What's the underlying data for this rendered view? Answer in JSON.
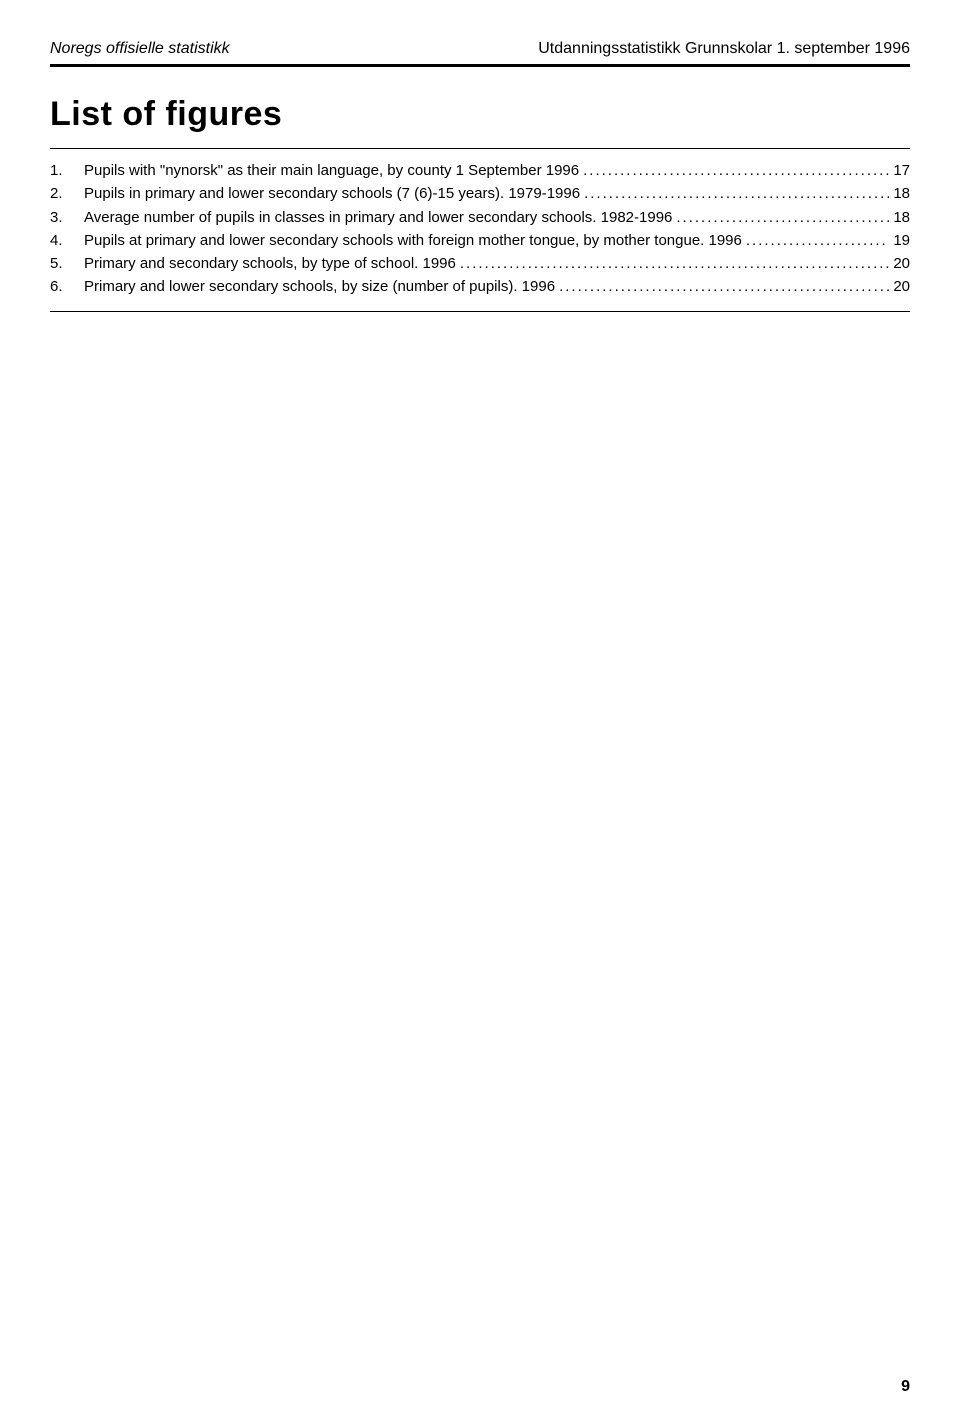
{
  "header": {
    "left": "Noregs offisielle statistikk",
    "right": "Utdanningsstatistikk Grunnskolar 1. september 1996"
  },
  "title": "List of figures",
  "figures": [
    {
      "num": "1.",
      "text": "Pupils with \"nynorsk\" as their main language, by county 1 September 1996",
      "page": "17"
    },
    {
      "num": "2.",
      "text": "Pupils in primary and lower secondary schools (7 (6)-15 years). 1979-1996",
      "page": "18"
    },
    {
      "num": "3.",
      "text": "Average number of pupils in classes in primary and lower secondary schools. 1982-1996",
      "page": "18"
    },
    {
      "num": "4.",
      "text": "Pupils at primary and lower secondary schools with foreign mother tongue, by mother tongue. 1996",
      "page": "19"
    },
    {
      "num": "5.",
      "text": "Primary and secondary schools, by type of school. 1996",
      "page": "20"
    },
    {
      "num": "6.",
      "text": "Primary and lower secondary schools, by size (number of pupils). 1996",
      "page": "20"
    }
  ],
  "page_number": "9"
}
